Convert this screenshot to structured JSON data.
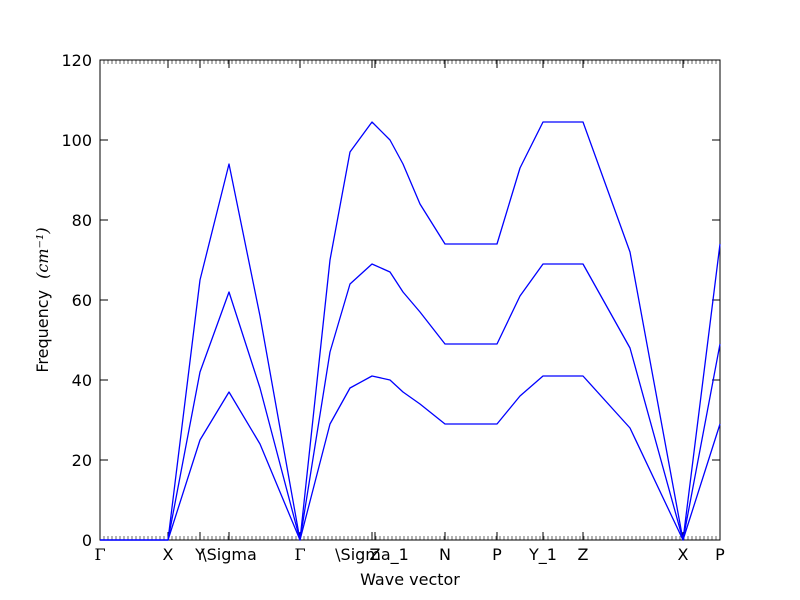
{
  "chart_data": {
    "type": "line",
    "xlabel": "Wave vector",
    "ylabel": "Frequency",
    "ylabel_unit": "(cm⁻¹)",
    "ylim": [
      0,
      120
    ],
    "yticks": [
      0,
      20,
      40,
      60,
      80,
      100,
      120
    ],
    "xlim": [
      0,
      620
    ],
    "grid": false,
    "legend": "none",
    "line_color": "#0000ff",
    "high_symmetry_points": [
      {
        "label": "Γ",
        "x": 0
      },
      {
        "label": "X",
        "x": 68
      },
      {
        "label": "Y",
        "x": 100
      },
      {
        "label": "\\Sigma",
        "x": 129
      },
      {
        "label": "Γ",
        "x": 200
      },
      {
        "label": "\\Sigma_1",
        "x": 272
      },
      {
        "label": "Z",
        "x": 275
      },
      {
        "label": "N",
        "x": 345
      },
      {
        "label": "P",
        "x": 397
      },
      {
        "label": "Y_1",
        "x": 443
      },
      {
        "label": "Z",
        "x": 483
      },
      {
        "label": "X",
        "x": 583
      },
      {
        "label": "P",
        "x": 620
      }
    ],
    "series": [
      {
        "values": [
          [
            0,
            0
          ],
          [
            68,
            0
          ],
          [
            100,
            65
          ],
          [
            129,
            94
          ],
          [
            160,
            56
          ],
          [
            200,
            0
          ],
          [
            230,
            70
          ],
          [
            250,
            97
          ],
          [
            272,
            104.5
          ],
          [
            290,
            100
          ],
          [
            303,
            94
          ],
          [
            320,
            84
          ],
          [
            345,
            74
          ],
          [
            397,
            74
          ],
          [
            420,
            93
          ],
          [
            443,
            104.5
          ],
          [
            483,
            104.5
          ],
          [
            530,
            72
          ],
          [
            583,
            0
          ],
          [
            620,
            74
          ]
        ]
      },
      {
        "values": [
          [
            0,
            0
          ],
          [
            68,
            0
          ],
          [
            100,
            42
          ],
          [
            129,
            62
          ],
          [
            160,
            38
          ],
          [
            200,
            0
          ],
          [
            230,
            47
          ],
          [
            250,
            64
          ],
          [
            272,
            69
          ],
          [
            290,
            67
          ],
          [
            303,
            62
          ],
          [
            320,
            57
          ],
          [
            345,
            49
          ],
          [
            397,
            49
          ],
          [
            420,
            61
          ],
          [
            443,
            69
          ],
          [
            483,
            69
          ],
          [
            530,
            48
          ],
          [
            583,
            0
          ],
          [
            620,
            49
          ]
        ]
      },
      {
        "values": [
          [
            0,
            0
          ],
          [
            68,
            0
          ],
          [
            100,
            25
          ],
          [
            129,
            37
          ],
          [
            160,
            24
          ],
          [
            200,
            0
          ],
          [
            230,
            29
          ],
          [
            250,
            38
          ],
          [
            272,
            41
          ],
          [
            290,
            40
          ],
          [
            303,
            37
          ],
          [
            320,
            34
          ],
          [
            345,
            29
          ],
          [
            397,
            29
          ],
          [
            420,
            36
          ],
          [
            443,
            41
          ],
          [
            483,
            41
          ],
          [
            530,
            28
          ],
          [
            583,
            0
          ],
          [
            620,
            29
          ]
        ]
      }
    ]
  }
}
